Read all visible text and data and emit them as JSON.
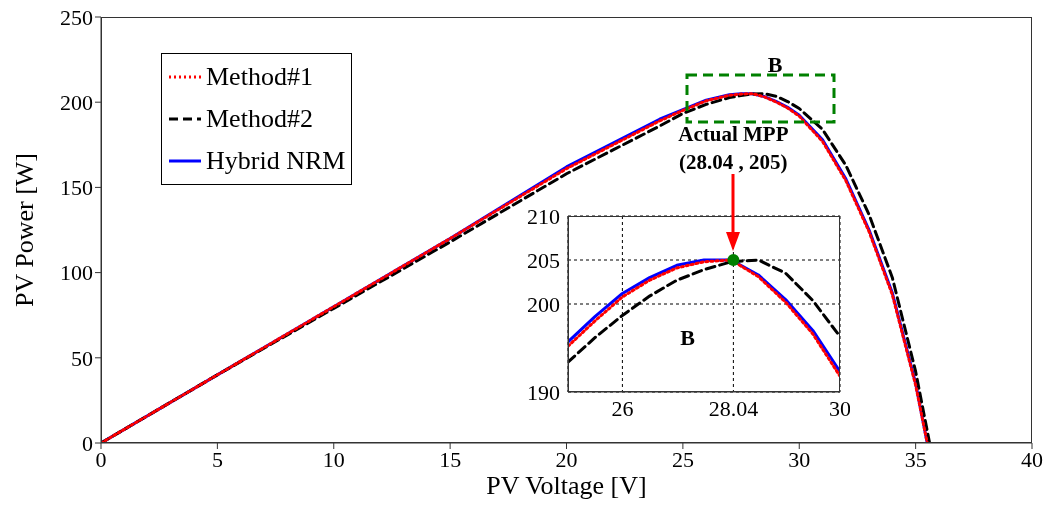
{
  "chart_data": [
    {
      "type": "line",
      "xlabel": "PV Voltage [V]",
      "ylabel": "PV Power [W]",
      "xlim": [
        0,
        40
      ],
      "ylim": [
        0,
        250
      ],
      "xticks": [
        0,
        5,
        10,
        15,
        20,
        25,
        30,
        35,
        40
      ],
      "yticks": [
        0,
        50,
        100,
        150,
        200,
        250
      ],
      "legend": "top left",
      "annotations": [
        "B"
      ],
      "series": [
        {
          "name": "Method#1",
          "color": "#ff0000",
          "line_style": "dotted",
          "x": [
            0,
            5,
            10,
            15,
            20,
            22,
            24,
            25,
            26,
            27,
            27.5,
            28,
            28.5,
            29,
            29.5,
            30,
            31,
            32,
            33,
            34,
            35,
            35.5
          ],
          "values": [
            0,
            40,
            80,
            120,
            161,
            175,
            189,
            195.2,
            200.8,
            204.1,
            204.8,
            205,
            203.1,
            200.2,
            196.6,
            191.8,
            177,
            154,
            124,
            87,
            34,
            0
          ]
        },
        {
          "name": "Method#2",
          "color": "#000000",
          "line_style": "dashed",
          "x": [
            0,
            5,
            10,
            15,
            20,
            22,
            24,
            25,
            26,
            27,
            27.5,
            28,
            28.5,
            29,
            29.5,
            30,
            31,
            32,
            33,
            34,
            35,
            35.6
          ],
          "values": [
            0,
            40,
            79,
            118,
            158,
            172,
            186,
            193.4,
            198.7,
            202.7,
            203.9,
            204.8,
            205,
            203.5,
            200.4,
            196.3,
            184,
            163,
            134,
            97,
            42,
            0
          ]
        },
        {
          "name": "Hybrid NRM",
          "color": "#0000ff",
          "line_style": "solid",
          "x": [
            0,
            5,
            10,
            15,
            20,
            22,
            24,
            25,
            26,
            27,
            27.5,
            28,
            28.5,
            29,
            29.5,
            30,
            31,
            32,
            33,
            34,
            35,
            35.5
          ],
          "values": [
            0,
            40,
            80,
            120,
            162,
            176,
            190,
            195.7,
            201.2,
            204.4,
            205,
            205,
            203.3,
            200.5,
            197,
            192.3,
            178,
            155,
            125,
            88,
            35,
            0
          ]
        }
      ]
    },
    {
      "type": "line",
      "xlim": [
        25,
        30
      ],
      "ylim": [
        190,
        210
      ],
      "xticks": [
        26,
        28.04,
        30
      ],
      "yticks": [
        190,
        200,
        205,
        210
      ],
      "grid": true,
      "annotations": [
        "B",
        "Actual MPP\n(28.04 , 205)"
      ],
      "series": [
        {
          "color": "#ff0000",
          "line_style": "dotted",
          "x": [
            25,
            25.5,
            26,
            26.5,
            27,
            27.5,
            28,
            28.5,
            29,
            29.5,
            30
          ],
          "values": [
            195.2,
            198.1,
            200.8,
            202.7,
            204.1,
            204.8,
            205,
            203.1,
            200.2,
            196.6,
            191.8
          ]
        },
        {
          "color": "#000000",
          "line_style": "dashed",
          "x": [
            25,
            25.5,
            26,
            26.5,
            27,
            27.5,
            28,
            28.5,
            29,
            29.5,
            30
          ],
          "values": [
            193.4,
            196.2,
            198.7,
            200.9,
            202.7,
            203.9,
            204.8,
            205,
            203.5,
            200.4,
            196.3
          ]
        },
        {
          "color": "#0000ff",
          "line_style": "solid",
          "x": [
            25,
            25.5,
            26,
            26.5,
            27,
            27.5,
            28,
            28.5,
            29,
            29.5,
            30
          ],
          "values": [
            195.7,
            198.6,
            201.2,
            203,
            204.4,
            205,
            205,
            203.3,
            200.5,
            197,
            192.3
          ]
        },
        {
          "type": "scatter",
          "color": "#008000",
          "x": [
            28.04
          ],
          "values": [
            205
          ]
        }
      ]
    }
  ]
}
